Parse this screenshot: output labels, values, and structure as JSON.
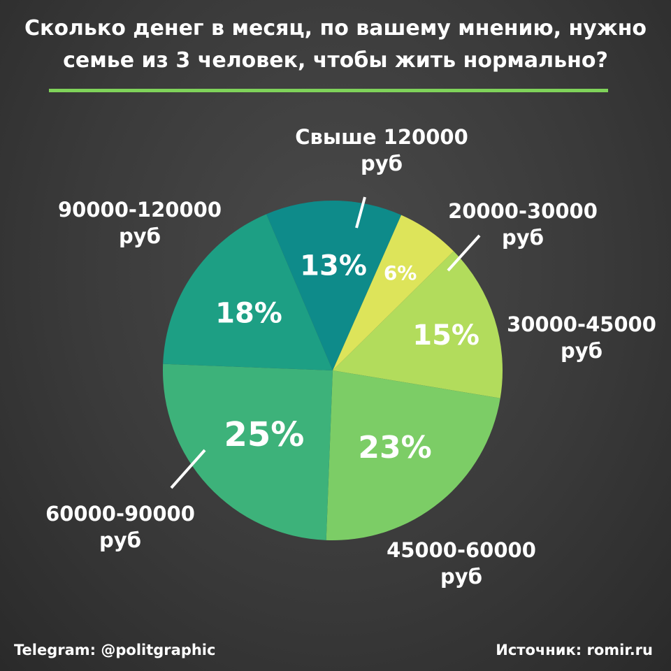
{
  "title": {
    "line1": "Сколько денег в месяц, по вашему мнению, нужно",
    "line2": "семье из 3 человек, чтобы жить нормально?"
  },
  "colors": {
    "accent_rule": "#7fd35a",
    "background": "#3a3a3a"
  },
  "chart_data": {
    "type": "pie",
    "unit": "%",
    "slices": [
      {
        "label_lines": [
          "Свыше 120000",
          "руб"
        ],
        "value": 13,
        "display": "13%",
        "color": "#0e8b8a"
      },
      {
        "label_lines": [
          "20000-30000",
          "руб"
        ],
        "value": 6,
        "display": "6%",
        "color": "#dde45a"
      },
      {
        "label_lines": [
          "30000-45000",
          "руб"
        ],
        "value": 15,
        "display": "15%",
        "color": "#b2dc5c"
      },
      {
        "label_lines": [
          "45000-60000",
          "руб"
        ],
        "value": 23,
        "display": "23%",
        "color": "#7ccd66"
      },
      {
        "label_lines": [
          "60000-90000",
          "руб"
        ],
        "value": 25,
        "display": "25%",
        "color": "#3db27a"
      },
      {
        "label_lines": [
          "90000-120000",
          "руб"
        ],
        "value": 18,
        "display": "18%",
        "color": "#1d9f84"
      }
    ]
  },
  "footer": {
    "left": "Telegram: @politgraphic",
    "right": "Источник: romir.ru"
  }
}
